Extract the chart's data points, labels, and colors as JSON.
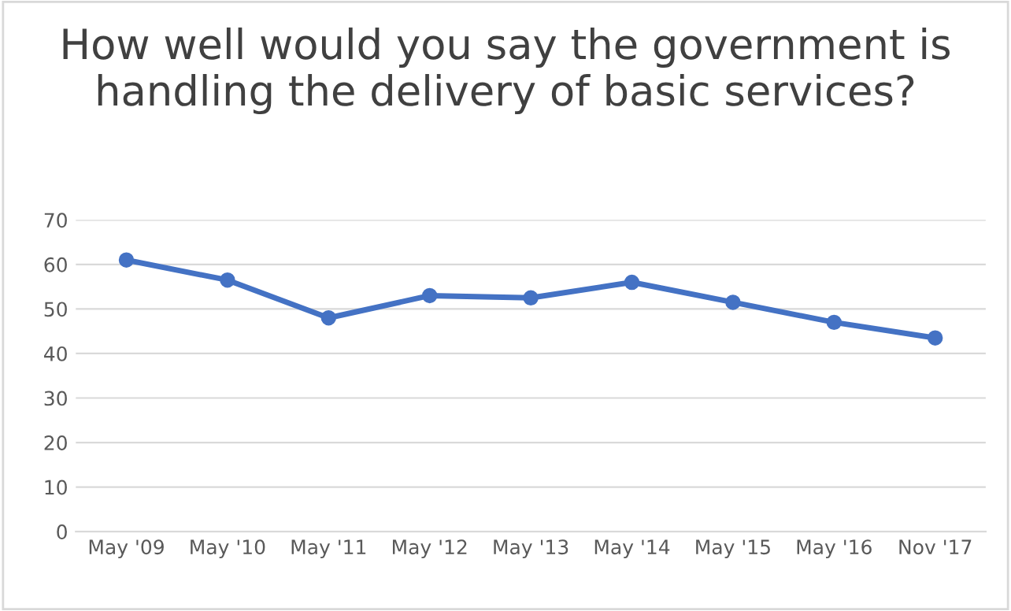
{
  "chart_data": {
    "type": "line",
    "title": "How well would you say the government is handling the delivery of basic services?",
    "categories": [
      "May '09",
      "May '10",
      "May '11",
      "May '12",
      "May '13",
      "May '14",
      "May '15",
      "May '16",
      "Nov '17"
    ],
    "series": [
      {
        "color": "#4472c4",
        "values": [
          61,
          56.5,
          48,
          53,
          52.5,
          56,
          51.5,
          47,
          43.5
        ]
      }
    ],
    "ylim": [
      0,
      70
    ],
    "yticks": [
      0,
      10,
      20,
      30,
      40,
      50,
      60,
      70
    ],
    "grid": "y",
    "marker": "circle",
    "line_style": "solid"
  }
}
